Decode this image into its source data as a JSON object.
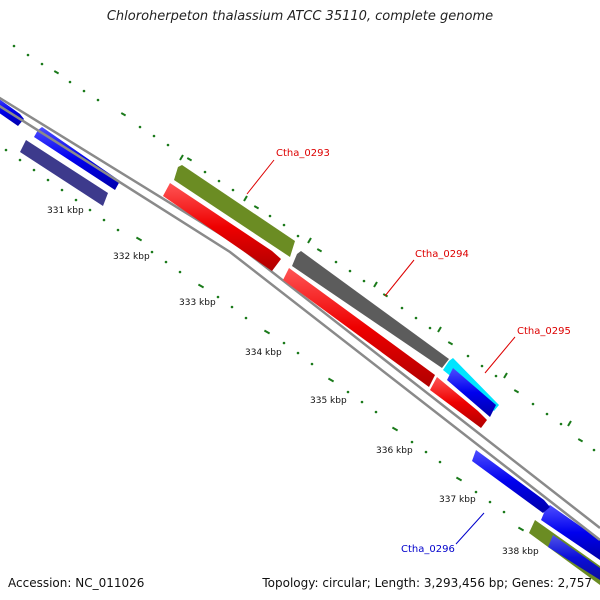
{
  "title": "Chloroherpeton thalassium ATCC 35110, complete genome",
  "footer": {
    "accession": "Accession: NC_011026",
    "info": "Topology: circular; Length: 3,293,456 bp; Genes: 2,757"
  },
  "ticks": [
    "331 kbp",
    "332 kbp",
    "333 kbp",
    "334 kbp",
    "335 kbp",
    "336 kbp",
    "337 kbp",
    "338 kbp"
  ],
  "gene_labels": [
    {
      "name": "Ctha_0293",
      "color": "#dd0000"
    },
    {
      "name": "Ctha_0294",
      "color": "#dd0000"
    },
    {
      "name": "Ctha_0295",
      "color": "#dd0000"
    },
    {
      "name": "Ctha_0296",
      "color": "#0000cc"
    }
  ],
  "colors": {
    "blue": "#0000ee",
    "navy": "#3d3a8c",
    "olive": "#6b8c23",
    "red": "#ee0000",
    "gray": "#606060",
    "cyan": "#00e5ff",
    "backbone": "#8a8a8a",
    "gc_dots": "#1a7a1a"
  }
}
